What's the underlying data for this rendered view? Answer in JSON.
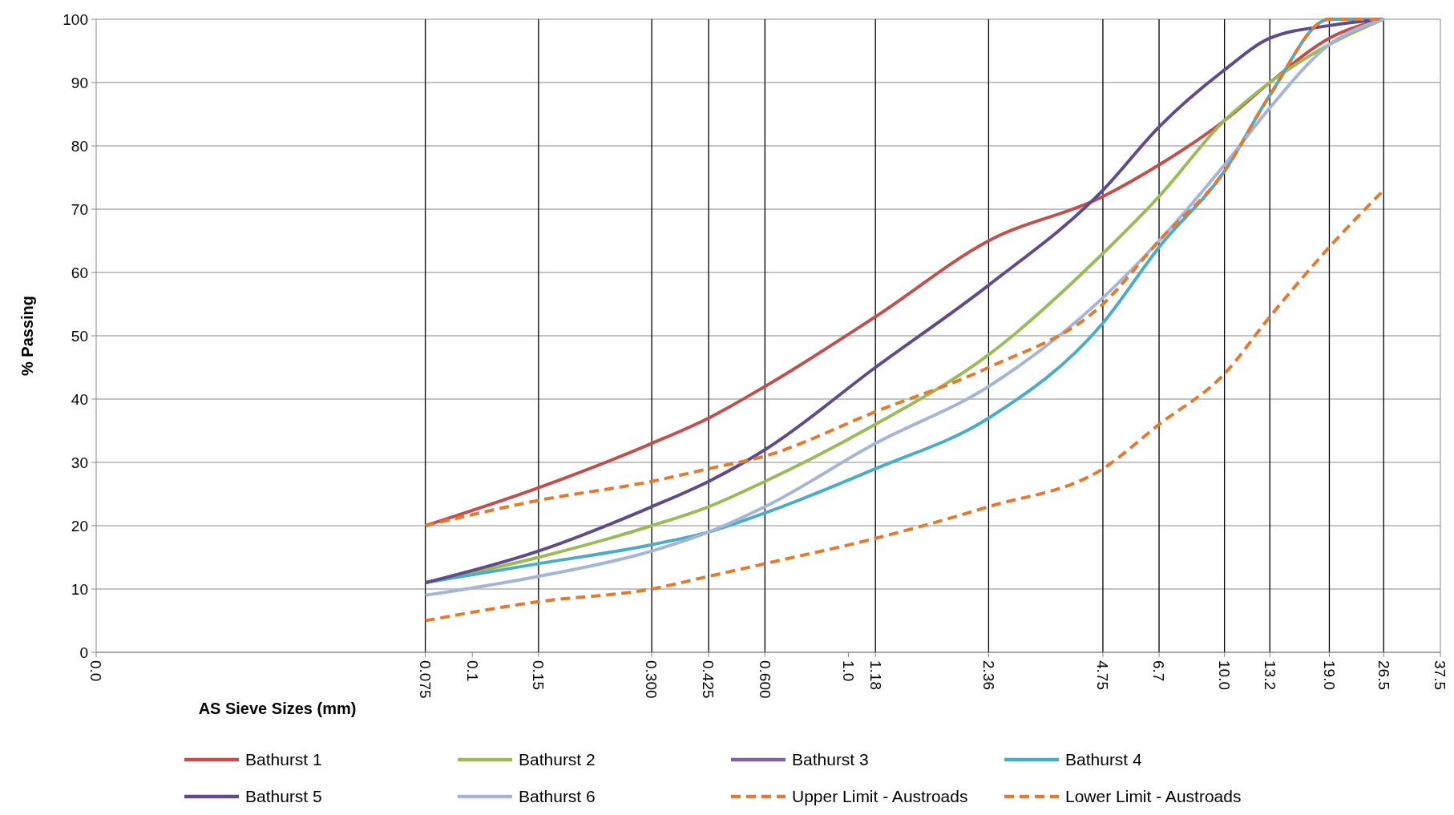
{
  "chart_data": {
    "type": "line",
    "xlabel": "AS Sieve Sizes (mm)",
    "ylabel": "% Passing",
    "log": "x",
    "x": [
      0.075,
      0.15,
      0.3,
      0.425,
      0.6,
      1.18,
      2.36,
      4.75,
      6.7,
      10,
      13.2,
      19,
      26.5
    ],
    "xlim": [
      0.01,
      37.5
    ],
    "xticks": [
      {
        "value": 0.01,
        "label": "0.0"
      },
      {
        "value": 0.075,
        "label": "0.075"
      },
      0.1,
      0.15,
      {
        "value": 0.3,
        "label": "0.300"
      },
      {
        "value": 0.425,
        "label": "0.425"
      },
      {
        "value": 0.6,
        "label": "0.600"
      },
      {
        "value": 1,
        "label": "1.0"
      },
      1.18,
      2.36,
      4.75,
      6.7,
      {
        "value": 10,
        "label": "10.0"
      },
      13.2,
      {
        "value": 19,
        "label": "19.0"
      },
      26.5,
      37.5
    ],
    "ylim": [
      0,
      100
    ],
    "yticks": [
      0,
      10,
      20,
      30,
      40,
      50,
      60,
      70,
      80,
      90,
      100
    ],
    "grid": "y",
    "legend": "bottom",
    "marker": "none",
    "ref_lines": [
      {
        "axis": "x",
        "value": 0.075,
        "color": "#000000"
      },
      {
        "axis": "x",
        "value": 0.15,
        "color": "#000000"
      },
      {
        "axis": "x",
        "value": 0.3,
        "color": "#000000"
      },
      {
        "axis": "x",
        "value": 0.425,
        "color": "#000000"
      },
      {
        "axis": "x",
        "value": 0.6,
        "color": "#000000"
      },
      {
        "axis": "x",
        "value": 1.18,
        "color": "#000000"
      },
      {
        "axis": "x",
        "value": 2.36,
        "color": "#000000"
      },
      {
        "axis": "x",
        "value": 4.75,
        "color": "#000000"
      },
      {
        "axis": "x",
        "value": 6.7,
        "color": "#000000"
      },
      {
        "axis": "x",
        "value": 10,
        "color": "#000000"
      },
      {
        "axis": "x",
        "value": 13.2,
        "color": "#000000"
      },
      {
        "axis": "x",
        "value": 19,
        "color": "#000000"
      },
      {
        "axis": "x",
        "value": 26.5,
        "color": "#000000"
      }
    ],
    "series": [
      {
        "name": "Bathurst 1",
        "color": "#c0504d",
        "line_style": "solid",
        "values": [
          20,
          26,
          33,
          37,
          42,
          53,
          65,
          72,
          77,
          84,
          90,
          97,
          100
        ]
      },
      {
        "name": "Bathurst 2",
        "color": "#9bbb59",
        "line_style": "solid",
        "values": [
          11,
          15,
          20,
          23,
          27,
          36,
          47,
          63,
          72,
          84,
          90,
          96,
          100
        ]
      },
      {
        "name": "Bathurst 3",
        "color": "#8064a2",
        "line_style": "solid",
        "values": [
          null,
          null,
          null,
          null,
          null,
          null,
          null,
          null,
          null,
          null,
          null,
          null,
          null
        ]
      },
      {
        "name": "Bathurst 4",
        "color": "#4bacc6",
        "line_style": "solid",
        "values": [
          11,
          14,
          17,
          19,
          22,
          29,
          37,
          52,
          64,
          76,
          88,
          100,
          100
        ]
      },
      {
        "name": "Bathurst 5",
        "color": "#604a8b",
        "line_style": "solid",
        "values": [
          11,
          16,
          23,
          27,
          32,
          45,
          58,
          73,
          83,
          92,
          97,
          99,
          100
        ]
      },
      {
        "name": "Bathurst 6",
        "color": "#a5b5d8",
        "line_style": "solid",
        "values": [
          9,
          12,
          16,
          19,
          23,
          33,
          42,
          56,
          65,
          77,
          86,
          96,
          100
        ]
      },
      {
        "name": "Upper Limit - Austroads",
        "color": "#e07b30",
        "line_style": "dashed",
        "values": [
          20,
          24,
          27,
          29,
          31,
          38,
          45,
          55,
          65,
          76,
          88,
          100,
          100
        ]
      },
      {
        "name": "Lower Limit - Austroads",
        "color": "#e07b30",
        "line_style": "dashed",
        "values": [
          5,
          8,
          10,
          12,
          14,
          18,
          23,
          29,
          36,
          44,
          53,
          64,
          73
        ]
      }
    ]
  }
}
